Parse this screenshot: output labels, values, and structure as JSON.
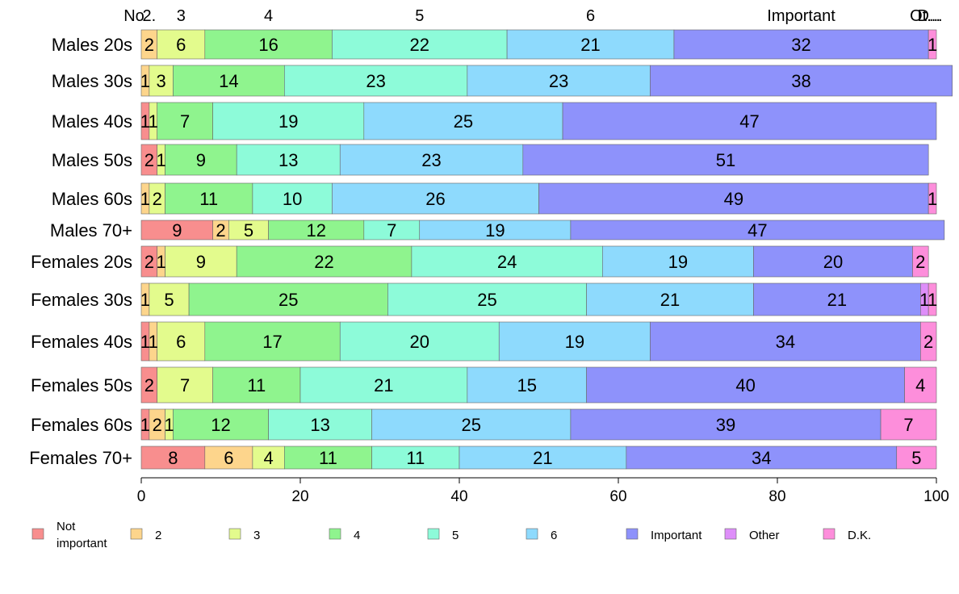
{
  "chart_data": {
    "type": "bar",
    "orientation": "horizontal",
    "stacked": true,
    "categories": [
      "Males 20s",
      "Males 30s",
      "Males 40s",
      "Males 50s",
      "Males 60s",
      "Males 70+",
      "Females 20s",
      "Females 30s",
      "Females 40s",
      "Females 50s",
      "Females 60s",
      "Females 70+"
    ],
    "series": [
      {
        "name": "Not important",
        "color": "#f88e8e",
        "values": [
          0,
          0,
          1,
          2,
          0,
          9,
          2,
          0,
          1,
          2,
          1,
          8
        ]
      },
      {
        "name": "2",
        "color": "#fdd58c",
        "values": [
          2,
          1,
          0,
          0,
          1,
          2,
          1,
          1,
          1,
          0,
          2,
          6
        ]
      },
      {
        "name": "3",
        "color": "#e3fb8d",
        "values": [
          6,
          3,
          1,
          1,
          2,
          5,
          9,
          5,
          6,
          7,
          1,
          4
        ]
      },
      {
        "name": "4",
        "color": "#8ff48e",
        "values": [
          16,
          14,
          7,
          9,
          11,
          12,
          22,
          25,
          17,
          11,
          12,
          11
        ]
      },
      {
        "name": "5",
        "color": "#8dfbd9",
        "values": [
          22,
          23,
          19,
          13,
          10,
          7,
          24,
          25,
          20,
          21,
          13,
          11
        ]
      },
      {
        "name": "6",
        "color": "#8edafd",
        "values": [
          21,
          23,
          25,
          23,
          26,
          19,
          19,
          21,
          19,
          15,
          25,
          21
        ]
      },
      {
        "name": "Important",
        "color": "#8e92fb",
        "values": [
          32,
          38,
          47,
          51,
          49,
          47,
          20,
          21,
          34,
          40,
          39,
          34
        ]
      },
      {
        "name": "Other",
        "color": "#de8ef9",
        "values": [
          0,
          0,
          0,
          0,
          0,
          0,
          0,
          1,
          0,
          0,
          0,
          0
        ]
      },
      {
        "name": "D.K.",
        "color": "#fd8edb",
        "values": [
          1,
          0,
          0,
          0,
          1,
          0,
          2,
          1,
          2,
          4,
          7,
          5
        ]
      }
    ],
    "data_labels": [
      [
        "",
        "2",
        "6",
        "16",
        "22",
        "21",
        "32",
        "",
        "1"
      ],
      [
        "",
        "1",
        "3",
        "14",
        "23",
        "23",
        "38",
        "",
        ""
      ],
      [
        "1",
        "",
        "1",
        "7",
        "19",
        "25",
        "47",
        "",
        ""
      ],
      [
        "2",
        "",
        "1",
        "9",
        "13",
        "23",
        "51",
        "",
        ""
      ],
      [
        "",
        "1",
        "2",
        "11",
        "10",
        "26",
        "49",
        "",
        "1"
      ],
      [
        "9",
        "2",
        "5",
        "12",
        "7",
        "19",
        "47",
        "",
        ""
      ],
      [
        "2",
        "1",
        "9",
        "22",
        "24",
        "19",
        "20",
        "",
        "2"
      ],
      [
        "",
        "1",
        "5",
        "25",
        "25",
        "21",
        "21",
        "1",
        "1"
      ],
      [
        "1",
        "1",
        "6",
        "17",
        "20",
        "19",
        "34",
        "",
        "2"
      ],
      [
        "2",
        "",
        "7",
        "11",
        "21",
        "15",
        "40",
        "",
        "4"
      ],
      [
        "1",
        "2",
        "1",
        "12",
        "13",
        "25",
        "39",
        "",
        "7"
      ],
      [
        "8",
        "6",
        "4",
        "11",
        "11",
        "21",
        "34",
        "",
        "5"
      ]
    ],
    "top_labels": [
      "No",
      "2.",
      "3",
      "4",
      "5",
      "6",
      "Important",
      "Ot...",
      "D..."
    ],
    "xlim": [
      0,
      100
    ],
    "xticks": [
      "0",
      "20",
      "40",
      "60",
      "80",
      "100"
    ],
    "grid": false,
    "legend_position": "bottom",
    "legend_labels": [
      [
        "Not",
        "important"
      ],
      [
        "2"
      ],
      [
        "3"
      ],
      [
        "4"
      ],
      [
        "5"
      ],
      [
        "6"
      ],
      [
        "Important"
      ],
      [
        "Other"
      ],
      [
        "D.K."
      ]
    ]
  }
}
